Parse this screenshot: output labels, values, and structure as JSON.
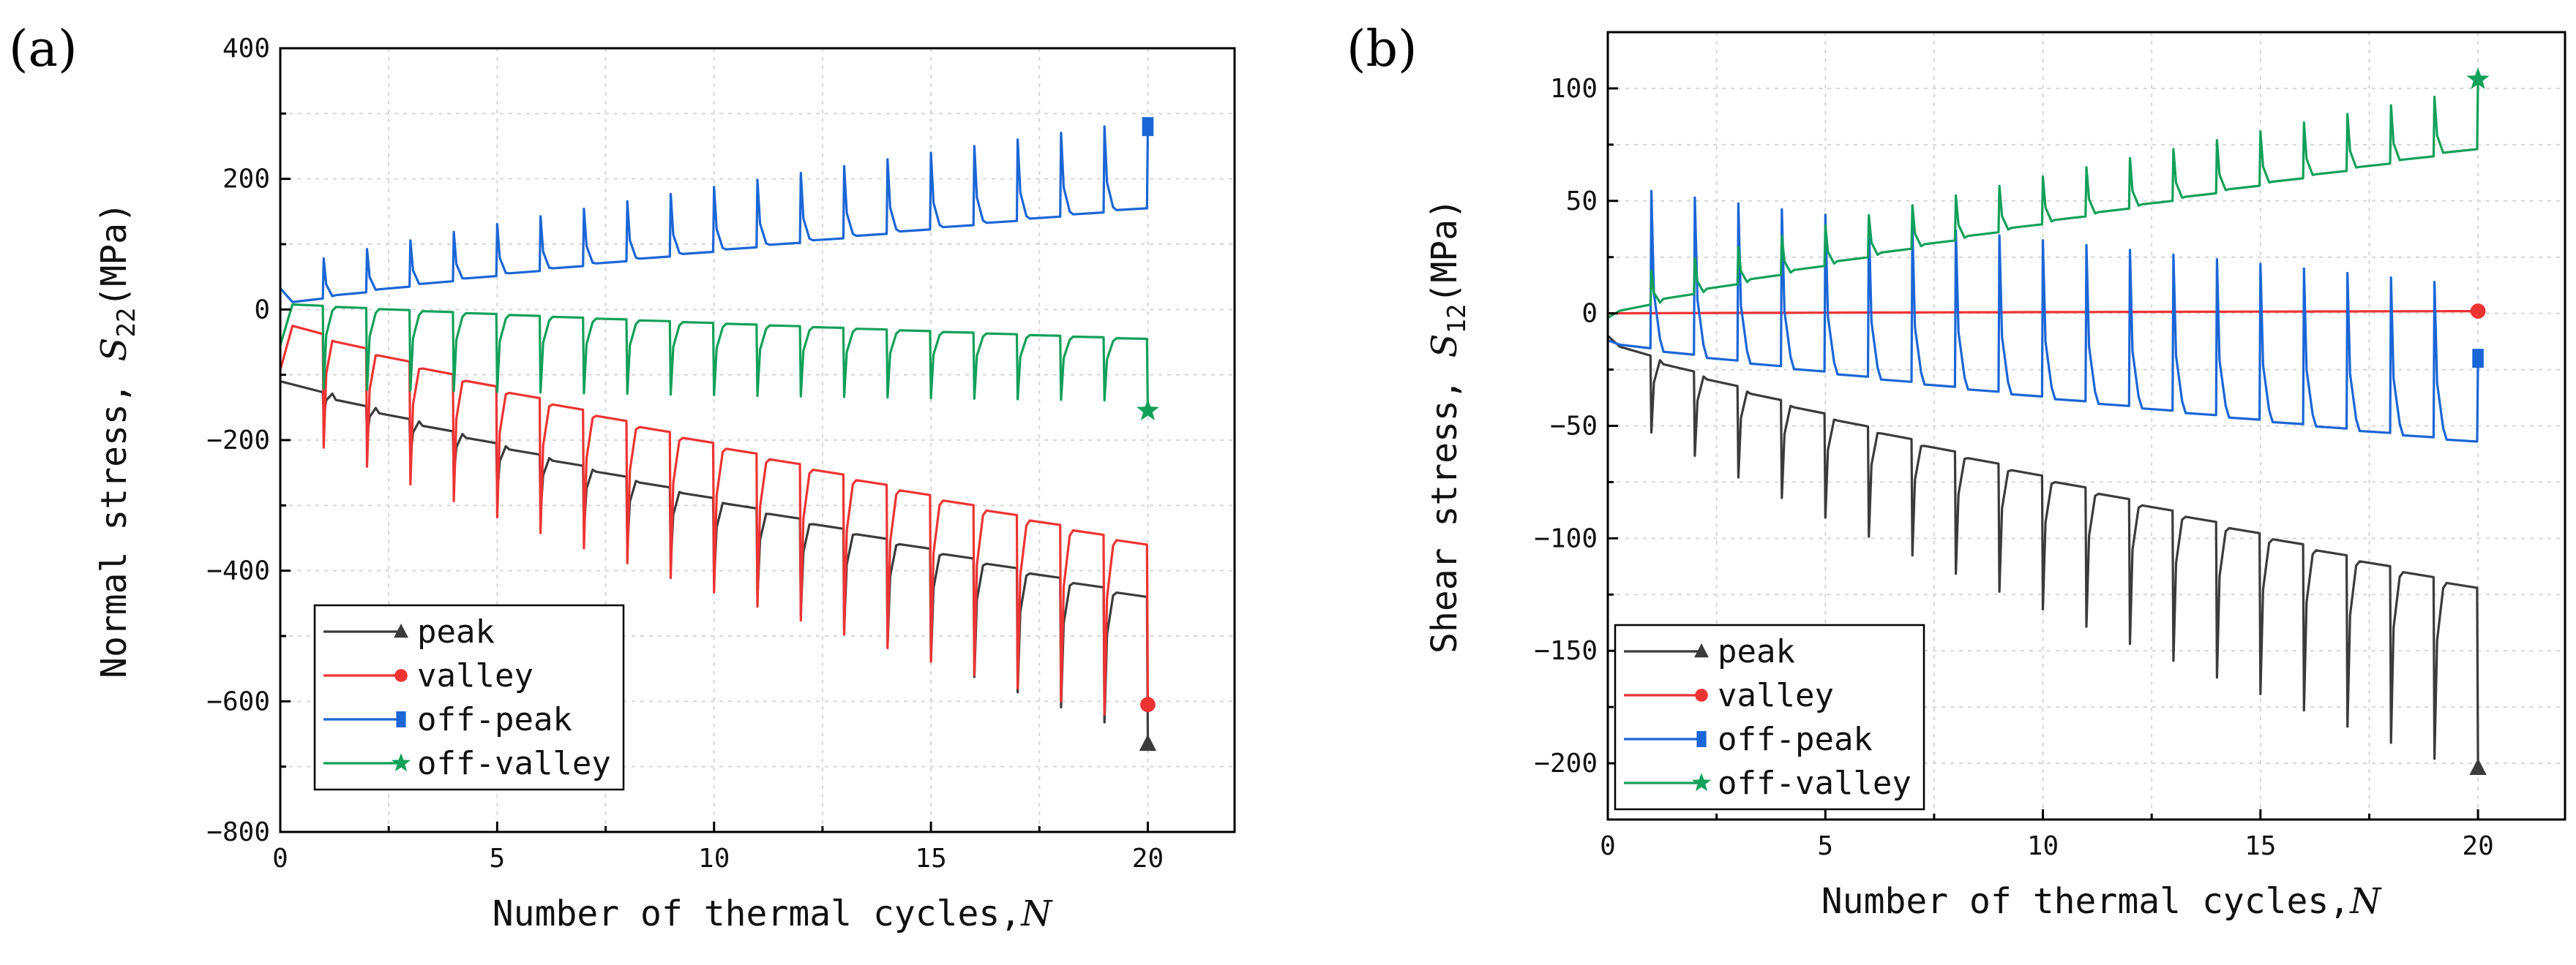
{
  "chart_data": [
    {
      "type": "line",
      "panel_label": "(a)",
      "xlabel_text": "Number of thermal cycles,",
      "xlabel_var": "N",
      "ylabel_text": "Normal stress,",
      "ylabel_var": "S",
      "ylabel_sub": "22",
      "ylabel_unit": "(MPa)",
      "xlim": [
        0,
        22
      ],
      "ylim": [
        -800,
        400
      ],
      "xticks": [
        0,
        5,
        10,
        15,
        20
      ],
      "yticks": [
        -800,
        -600,
        -400,
        -200,
        0,
        200,
        400
      ],
      "x_tick_labels": [
        "0",
        "5",
        "10",
        "15",
        "20"
      ],
      "y_tick_labels": [
        "−800",
        "−600",
        "−400",
        "−200",
        "0",
        "200",
        "400"
      ],
      "grid": true,
      "legend_position": "bottom-left",
      "cycles": 20,
      "series": [
        {
          "name": "peak",
          "color": "#3b3b3b",
          "marker": "triangle",
          "base": [
            -100,
            -440
          ],
          "spike": [
            -120,
            -655
          ],
          "end": -665
        },
        {
          "name": "valley",
          "color": "#ee3333",
          "marker": "circle",
          "base": [
            -10,
            -360
          ],
          "spike": [
            -175,
            -640
          ],
          "end": -605
        },
        {
          "name": "off-peak",
          "color": "#1a66d6",
          "marker": "square",
          "base": [
            5,
            155
          ],
          "spike": [
            60,
            290
          ],
          "end": 280
        },
        {
          "name": "off-valley",
          "color": "#12a05a",
          "marker": "star",
          "base": [
            10,
            -45
          ],
          "spike": [
            -120,
            -140
          ],
          "end": -155
        }
      ],
      "legend": [
        "peak",
        "valley",
        "off-peak",
        "off-valley"
      ]
    },
    {
      "type": "line",
      "panel_label": "(b)",
      "xlabel_text": "Number of thermal cycles,",
      "xlabel_var": "N",
      "ylabel_text": "Shear stress,",
      "ylabel_var": "S",
      "ylabel_sub": "12",
      "ylabel_unit": "(MPa)",
      "xlim": [
        0,
        22
      ],
      "ylim": [
        -225,
        125
      ],
      "xticks": [
        0,
        5,
        10,
        15,
        20
      ],
      "yticks": [
        -200,
        -150,
        -100,
        -50,
        0,
        50,
        100
      ],
      "x_tick_labels": [
        "0",
        "5",
        "10",
        "15",
        "20"
      ],
      "y_tick_labels": [
        "−200",
        "−150",
        "−100",
        "−50",
        "0",
        "50",
        "100"
      ],
      "grid": true,
      "legend_position": "bottom-left",
      "cycles": 20,
      "series": [
        {
          "name": "peak",
          "color": "#3b3b3b",
          "marker": "triangle",
          "base": [
            -10,
            -122
          ],
          "spike": [
            -40,
            -205
          ],
          "end": -202
        },
        {
          "name": "valley",
          "color": "#ee3333",
          "marker": "circle",
          "base": [
            0,
            1
          ],
          "spike": [
            0,
            1
          ],
          "end": 1
        },
        {
          "name": "off-peak",
          "color": "#1a66d6",
          "marker": "square",
          "base": [
            -12,
            -57
          ],
          "spike": [
            58,
            12
          ],
          "end": -20
        },
        {
          "name": "off-valley",
          "color": "#12a05a",
          "marker": "star",
          "base": [
            -2,
            73
          ],
          "spike": [
            12,
            100
          ],
          "end": 104
        }
      ],
      "legend": [
        "peak",
        "valley",
        "off-peak",
        "off-valley"
      ]
    }
  ]
}
